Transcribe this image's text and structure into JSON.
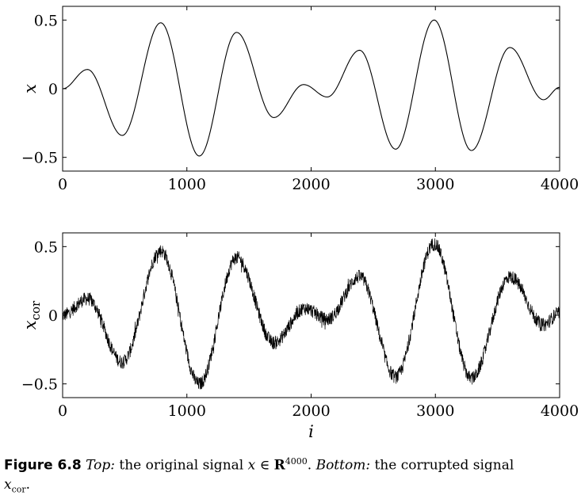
{
  "figure": {
    "number": "Figure 6.8",
    "caption_top_label": "Top:",
    "caption_top_text": " the original signal ",
    "caption_math_x": "x",
    "caption_in": " ∈ ",
    "caption_R": "R",
    "caption_exp": "4000",
    "caption_dot": ".",
    "caption_bottom_label": "Bottom:",
    "caption_bottom_text": " the corrupted signal ",
    "caption_xcor": "x",
    "caption_xcor_sub": "cor",
    "caption_end": "."
  },
  "chart_data": [
    {
      "type": "line",
      "title": "",
      "ylabel": "x",
      "xlabel": "",
      "xlim": [
        0,
        4000
      ],
      "ylim": [
        -0.6,
        0.6
      ],
      "xticks": [
        0,
        1000,
        2000,
        3000,
        4000
      ],
      "xtick_labels": [
        "0",
        "1000",
        "2000",
        "3000",
        "4000"
      ],
      "yticks": [
        -0.5,
        0,
        0.5
      ],
      "ytick_labels": [
        "−0.5",
        "0",
        "0.5"
      ],
      "series": [
        {
          "name": "x",
          "noisy": false,
          "keypoints": [
            [
              0,
              0.0
            ],
            [
              200,
              0.14
            ],
            [
              480,
              -0.34
            ],
            [
              790,
              0.48
            ],
            [
              1100,
              -0.49
            ],
            [
              1400,
              0.41
            ],
            [
              1700,
              -0.21
            ],
            [
              1940,
              0.03
            ],
            [
              2130,
              -0.06
            ],
            [
              2390,
              0.28
            ],
            [
              2680,
              -0.44
            ],
            [
              2990,
              0.5
            ],
            [
              3290,
              -0.45
            ],
            [
              3600,
              0.3
            ],
            [
              3870,
              -0.08
            ],
            [
              4000,
              0.01
            ]
          ]
        }
      ]
    },
    {
      "type": "line",
      "title": "",
      "ylabel": "x",
      "ylabel_sub": "cor",
      "xlabel": "i",
      "xlim": [
        0,
        4000
      ],
      "ylim": [
        -0.6,
        0.6
      ],
      "xticks": [
        0,
        1000,
        2000,
        3000,
        4000
      ],
      "xtick_labels": [
        "0",
        "1000",
        "2000",
        "3000",
        "4000"
      ],
      "yticks": [
        -0.5,
        0,
        0.5
      ],
      "ytick_labels": [
        "−0.5",
        "0",
        "0.5"
      ],
      "series": [
        {
          "name": "x_cor",
          "noisy": true,
          "noise_amplitude": 0.05,
          "keypoints": [
            [
              0,
              0.0
            ],
            [
              200,
              0.12
            ],
            [
              480,
              -0.34
            ],
            [
              790,
              0.47
            ],
            [
              1100,
              -0.5
            ],
            [
              1400,
              0.42
            ],
            [
              1700,
              -0.2
            ],
            [
              1950,
              0.05
            ],
            [
              2130,
              -0.03
            ],
            [
              2390,
              0.28
            ],
            [
              2680,
              -0.45
            ],
            [
              2990,
              0.52
            ],
            [
              3290,
              -0.46
            ],
            [
              3600,
              0.28
            ],
            [
              3870,
              -0.07
            ],
            [
              4000,
              0.02
            ]
          ]
        }
      ]
    }
  ]
}
